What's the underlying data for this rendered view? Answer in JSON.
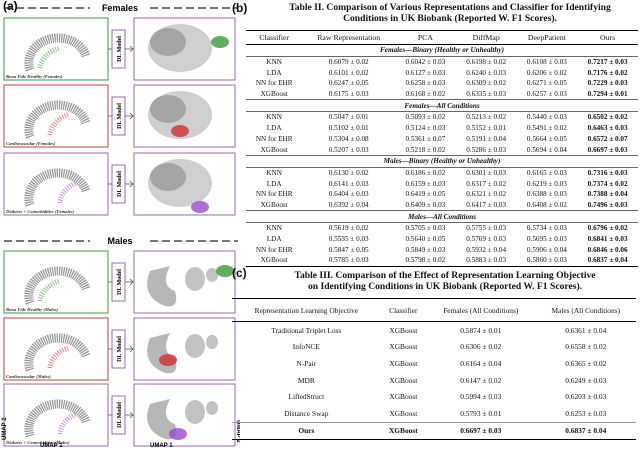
{
  "panel_a": {
    "label": "(a)",
    "x_axis": "UMAP 1",
    "y_axis": "UMAP 2",
    "groups": [
      {
        "title": "Females",
        "plots": [
          {
            "caption": "Bona Fide Healthy (Females)",
            "model": "DL Model"
          },
          {
            "caption": "Cardiovascular (Females)",
            "model": "DL Model"
          },
          {
            "caption": "Diabetes + Comorbidities (Females)",
            "model": "DL Model"
          }
        ]
      },
      {
        "title": "Males",
        "plots": [
          {
            "caption": "Bona Fide Healthy (Males)",
            "model": "DL Model"
          },
          {
            "caption": "Cardiovascular (Males)",
            "model": "DL Model"
          },
          {
            "caption": "Diabetes + Comorbidities (Males)",
            "model": "DL Model"
          }
        ]
      }
    ]
  },
  "table_ii": {
    "label": "(b)",
    "title": "Table II. Comparison of Various Representations and Classifier for Identifying Conditions in UK Biobank (Reported W. F1 Scores).",
    "header": [
      "Classifier",
      "Raw Representation",
      "PCA",
      "DiffMap",
      "DeepPatient",
      "Ours"
    ],
    "sections": [
      {
        "title": "Females—Binary (Healthy or Unhealthy)",
        "rows": [
          [
            "KNN",
            "0.6079 ± 0.02",
            "0.6042 ± 0.03",
            "0.6198 ± 0.02",
            "0.6108 ± 0.03",
            "0.7217 ± 0.03"
          ],
          [
            "LDA",
            "0.6101 ± 0.02",
            "0.6127 ± 0.03",
            "0.6240 ± 0.03",
            "0.6206 ± 0.02",
            "0.7176 ± 0.02"
          ],
          [
            "NN for EHR",
            "0.6247 ± 0.05",
            "0.6258 ± 0.03",
            "0.6309 ± 0.02",
            "0.6271 ± 0.05",
            "0.7229 ± 0.03"
          ],
          [
            "XGBoost",
            "0.6175 ± 0.03",
            "0.6168 ± 0.02",
            "0.6335 ± 0.03",
            "0.6257 ± 0.03",
            "0.7294 ± 0.01"
          ]
        ]
      },
      {
        "title": "Females—All Conditions",
        "rows": [
          [
            "KNN",
            "0.5047 ± 0.01",
            "0.5093 ± 0.02",
            "0.5213 ± 0.02",
            "0.5440 ± 0.03",
            "0.6502 ± 0.02"
          ],
          [
            "LDA",
            "0.5102 ± 0.01",
            "0.5124 ± 0.03",
            "0.5152 ± 0.01",
            "0.5491 ± 0.02",
            "0.6463 ± 0.03"
          ],
          [
            "NN for EHR",
            "0.5304 ± 0.08",
            "0.5361 ± 0.07",
            "0.5191 ± 0.04",
            "0.5664 ± 0.05",
            "0.6572 ± 0.07"
          ],
          [
            "XGBoost",
            "0.5207 ± 0.03",
            "0.5218 ± 0.02",
            "0.5286 ± 0.03",
            "0.5694 ± 0.04",
            "0.6697 ± 0.03"
          ]
        ]
      },
      {
        "title": "Males—Binary (Healthy or Unhealthy)",
        "rows": [
          [
            "KNN",
            "0.6130 ± 0.02",
            "0.6186 ± 0.02",
            "0.6301 ± 0.03",
            "0.6165 ± 0.03",
            "0.7316 ± 0.03"
          ],
          [
            "LDA",
            "0.6141 ± 0.03",
            "0.6159 ± 0.03",
            "0.6317 ± 0.02",
            "0.6219 ± 0.03",
            "0.7374 ± 0.02"
          ],
          [
            "NN for EHR",
            "0.6404 ± 0.03",
            "0.6419 ± 0.05",
            "0.6321 ± 0.02",
            "0.6388 ± 0.03",
            "0.7388 ± 0.04"
          ],
          [
            "XGBoost",
            "0.6392 ± 0.04",
            "0.6409 ± 0.03",
            "0.6417 ± 0.03",
            "0.6408 ± 0.02",
            "0.7496 ± 0.03"
          ]
        ]
      },
      {
        "title": "Males—All Conditions",
        "rows": [
          [
            "KNN",
            "0.5619 ± 0.02",
            "0.5705 ± 0.03",
            "0.5755 ± 0.03",
            "0.5734 ± 0.03",
            "0.6796 ± 0.02"
          ],
          [
            "LDA",
            "0.5535 ± 0.03",
            "0.5640 ± 0.05",
            "0.5769 ± 0.03",
            "0.5695 ± 0.03",
            "0.6841 ± 0.03"
          ],
          [
            "NN for EHR",
            "0.5847 ± 0.05",
            "0.5849 ± 0.03",
            "0.5932 ± 0.04",
            "0.5906 ± 0.04",
            "0.6846 ± 0.06"
          ],
          [
            "XGBoost",
            "0.5785 ± 0.03",
            "0.5798 ± 0.02",
            "0.5883 ± 0.03",
            "0.5860 ± 0.03",
            "0.6837 ± 0.04"
          ]
        ]
      }
    ]
  },
  "table_iii": {
    "label": "(c)",
    "title": "Table III. Comparison of the Effect of Representation Learning Objective on Identifying Conditions in UK Biobank (Reported W. F1 Scores).",
    "header": [
      "Representation Learning Objective",
      "Classifier",
      "Females (All Conditions)",
      "Males (All Conditions)"
    ],
    "rows": [
      [
        "Traditional Triplet Loss",
        "XGBoost",
        "0.5874 ± 0.01",
        "0.6361 ± 0.04"
      ],
      [
        "InfoNCE",
        "XGBoost",
        "0.6306 ± 0.02",
        "0.6558 ± 0.02"
      ],
      [
        "N-Pair",
        "XGBoost",
        "0.6164 ± 0.04",
        "0.6365 ± 0.02"
      ],
      [
        "MDR",
        "XGBoost",
        "0.6147 ± 0.02",
        "0.6249 ± 0.03"
      ],
      [
        "LiftedStruct",
        "XGBoost",
        "0.5994 ± 0.03",
        "0.6203 ± 0.03"
      ],
      [
        "Distance Swap",
        "XGBoost",
        "0.5793 ± 0.01",
        "0.6253 ± 0.03"
      ],
      [
        "Ours",
        "XGBoost",
        "0.6697 ± 0.03",
        "0.6837 ± 0.04"
      ]
    ]
  }
}
